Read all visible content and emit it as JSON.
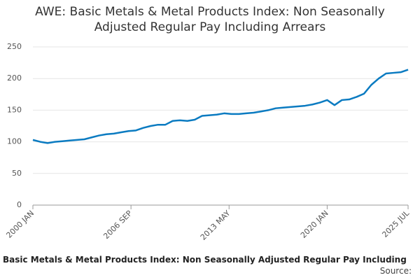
{
  "chart_data": {
    "type": "line",
    "title": "AWE: Basic Metals & Metal Products Index: Non Seasonally Adjusted Regular Pay Including Arrears",
    "source": "Source:",
    "x": [
      "2000 JAN",
      "2000 JUL",
      "2001 JAN",
      "2001 JUL",
      "2002 JAN",
      "2002 JUL",
      "2003 JAN",
      "2003 JUL",
      "2004 JAN",
      "2004 JUL",
      "2005 JAN",
      "2005 JUL",
      "2006 JAN",
      "2006 JUL",
      "2007 JAN",
      "2007 JUL",
      "2008 JAN",
      "2008 JUL",
      "2009 JAN",
      "2009 JUL",
      "2010 JAN",
      "2010 JUL",
      "2011 JAN",
      "2011 JUL",
      "2012 JAN",
      "2012 JUL",
      "2013 JAN",
      "2013 JUL",
      "2014 JAN",
      "2014 JUL",
      "2015 JAN",
      "2015 JUL",
      "2016 JAN",
      "2016 JUL",
      "2017 JAN",
      "2017 JUL",
      "2018 JAN",
      "2018 JUL",
      "2019 JAN",
      "2019 JUL",
      "2020 JAN",
      "2020 JUL",
      "2021 JAN",
      "2021 JUL",
      "2022 JAN",
      "2022 JUL",
      "2023 JAN",
      "2023 JUL",
      "2024 JAN",
      "2024 JUL",
      "2025 JAN",
      "2025 JUL"
    ],
    "series": [
      {
        "name": "Basic Metals & Metal Products Index: Non Seasonally Adjusted Regular Pay Including",
        "color": "#0b7bc1",
        "values": [
          103,
          100,
          98,
          100,
          101,
          102,
          103,
          104,
          107,
          110,
          112,
          113,
          115,
          117,
          118,
          122,
          125,
          127,
          127,
          133,
          134,
          133,
          135,
          141,
          142,
          143,
          145,
          144,
          144,
          145,
          146,
          148,
          150,
          153,
          154,
          155,
          156,
          157,
          159,
          162,
          166,
          158,
          166,
          167,
          171,
          176,
          190,
          200,
          208,
          209,
          210,
          214
        ]
      }
    ],
    "xlim": [
      "2000 JAN",
      "2025 JUL"
    ],
    "xticks": [
      "2000 JAN",
      "2006 SEP",
      "2013 MAY",
      "2020 JAN",
      "2025 JUL"
    ],
    "ylim": [
      0,
      250
    ],
    "yticks": [
      0,
      50,
      100,
      150,
      200,
      250
    ],
    "grid": true
  }
}
